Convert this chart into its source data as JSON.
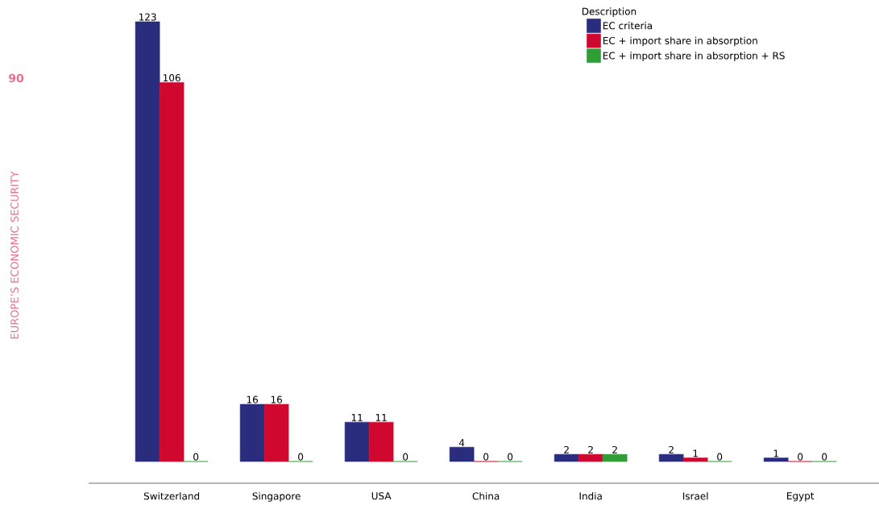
{
  "chart_data": {
    "type": "bar",
    "categories": [
      "Switzerland",
      "Singapore",
      "USA",
      "China",
      "India",
      "Israel",
      "Egypt"
    ],
    "legend_title": "Description",
    "legend": "top right",
    "data_labels": true,
    "series": [
      {
        "name": "EC criteria",
        "color": "#2a2d7e",
        "values": [
          123,
          16,
          11,
          4,
          2,
          2,
          1
        ]
      },
      {
        "name": "EC + import share in absorption",
        "color": "#d0082f",
        "values": [
          106,
          16,
          11,
          0,
          2,
          1,
          0
        ]
      },
      {
        "name": "EC + import share in absorption + RS",
        "color": "#2f9e37",
        "values": [
          0,
          0,
          0,
          0,
          2,
          0,
          0
        ]
      }
    ],
    "annotations": [
      "90",
      "EUROPE’S ECONOMIC SECURITY"
    ]
  }
}
